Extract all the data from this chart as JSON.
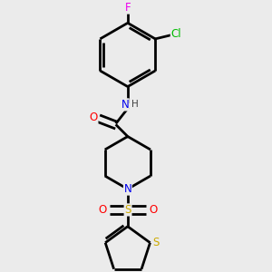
{
  "background_color": "#ebebeb",
  "atom_colors": {
    "C": "#000000",
    "N": "#0000ee",
    "O": "#ff0000",
    "S": "#ccaa00",
    "F": "#ee00ee",
    "Cl": "#00bb00",
    "H": "#404040"
  },
  "bond_color": "#000000",
  "line_width": 2.0,
  "figsize": [
    3.0,
    3.0
  ],
  "dpi": 100,
  "xlim": [
    0.1,
    0.9
  ],
  "ylim": [
    0.02,
    0.98
  ]
}
